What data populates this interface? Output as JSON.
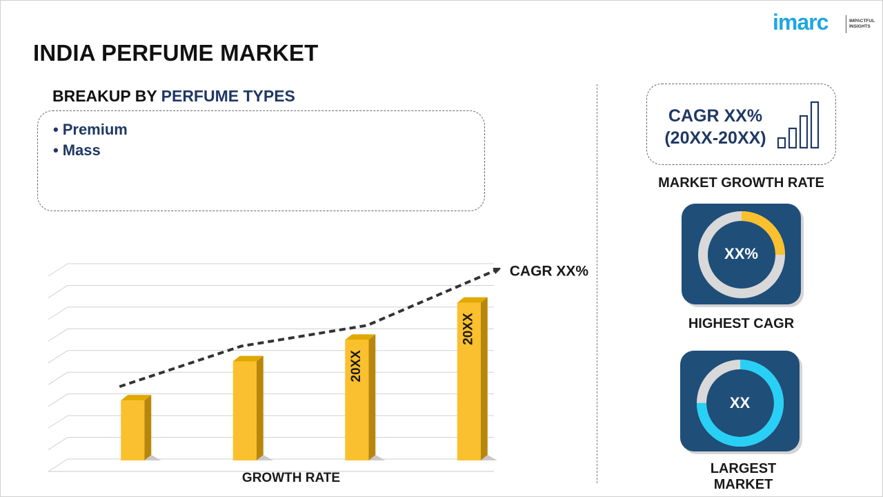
{
  "header": {
    "title": "INDIA PERFUME MARKET",
    "logo_text": "imarc",
    "logo_tagline": "IMPACTFUL INSIGHTS"
  },
  "breakup": {
    "prefix": "BREAKUP BY ",
    "topic": "PERFUME TYPES",
    "items": [
      "Premium",
      "Mass"
    ]
  },
  "chart_data": {
    "type": "bar",
    "categories": [
      "",
      "",
      "",
      ""
    ],
    "values": [
      30,
      50,
      61,
      80
    ],
    "bar_labels": [
      "",
      "",
      "20XX",
      "20XX"
    ],
    "trend_label": "CAGR XX%",
    "xlabel": "GROWTH RATE",
    "ylim": [
      0,
      100
    ],
    "grid": true,
    "bar_color": "#fbc02d"
  },
  "growth": {
    "cagr_line1": "CAGR XX%",
    "cagr_line2": "(20XX-20XX)",
    "label": "MARKET GROWTH RATE"
  },
  "highest": {
    "value": "XX%",
    "label": "HIGHEST CAGR",
    "fraction": 0.25,
    "accent": "#fbc02d"
  },
  "largest": {
    "value": "XX",
    "label": "LARGEST MARKET",
    "fraction": 0.75,
    "accent": "#29d0f5"
  },
  "colors": {
    "navy": "#1f3864",
    "card": "#1f4e79",
    "ring_track": "#d9d9d9"
  }
}
